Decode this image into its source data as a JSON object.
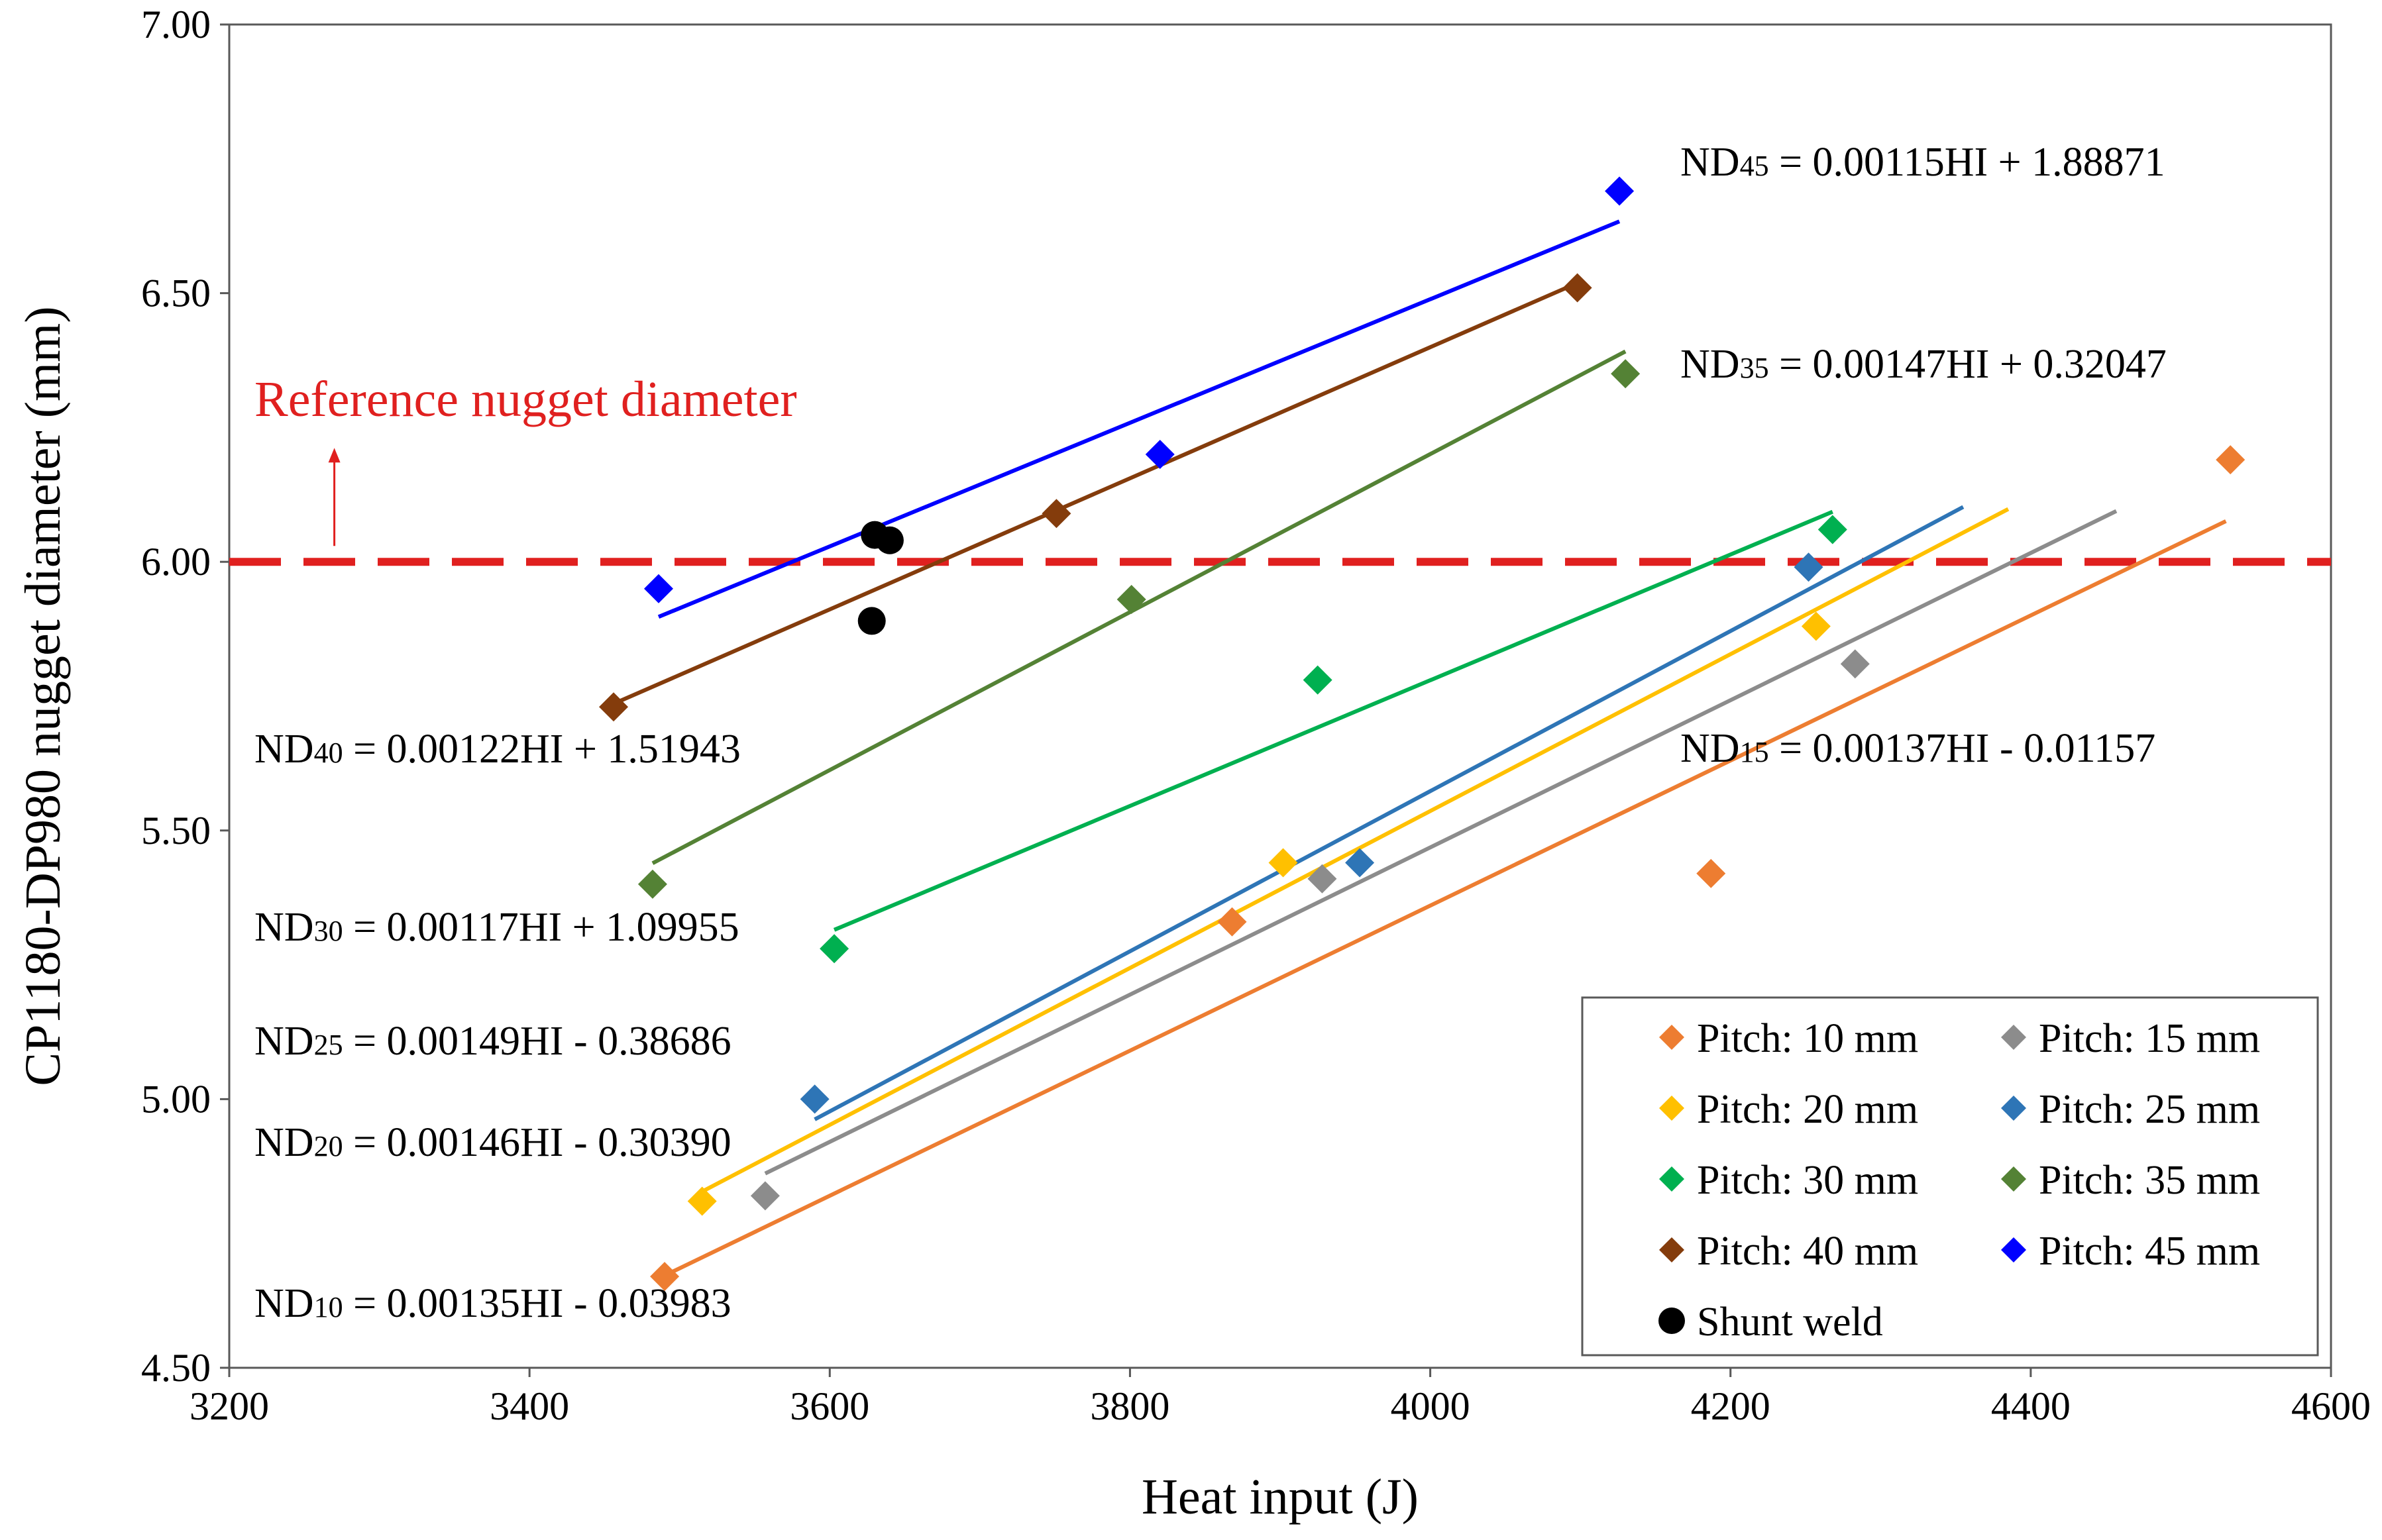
{
  "chart_data": {
    "type": "scatter",
    "title": "",
    "xlabel": "Heat input (J)",
    "ylabel": "CP1180-DP980 nugget diameter (mm)",
    "xlim": [
      3200,
      4600
    ],
    "ylim": [
      4.5,
      7.0
    ],
    "x_ticks": [
      "3200",
      "3400",
      "3600",
      "3800",
      "4000",
      "4200",
      "4400",
      "4600"
    ],
    "y_ticks": [
      "4.50",
      "5.00",
      "5.50",
      "6.00",
      "6.50",
      "7.00"
    ],
    "reference": {
      "label": "Reference nugget diameter",
      "value": 6.0,
      "color": "#e0201f",
      "arrow_x": 3270
    },
    "series": [
      {
        "name": "Pitch: 10 mm",
        "color": "#ed7d31",
        "points": [
          [
            3490,
            4.67
          ],
          [
            3868,
            5.33
          ],
          [
            4187,
            5.42
          ],
          [
            4533,
            6.19
          ]
        ],
        "fit_x": [
          3490,
          4530
        ],
        "eq_prefix": "ND",
        "eq_sub": "10",
        "equation": " = 0.00135HI - 0.03983"
      },
      {
        "name": "Pitch: 15 mm",
        "color": "#8c8c8c",
        "points": [
          [
            3557,
            4.82
          ],
          [
            3928,
            5.41
          ],
          [
            4283,
            5.81
          ]
        ],
        "fit_x": [
          3557,
          4457
        ],
        "eq_prefix": "ND",
        "eq_sub": "15",
        "equation": " = 0.00137HI - 0.01157"
      },
      {
        "name": "Pitch: 20 mm",
        "color": "#ffc000",
        "points": [
          [
            3515,
            4.81
          ],
          [
            3902,
            5.44
          ],
          [
            4257,
            5.88
          ]
        ],
        "fit_x": [
          3515,
          4385
        ],
        "eq_prefix": "ND",
        "eq_sub": "20",
        "equation": " = 0.00146HI - 0.30390"
      },
      {
        "name": "Pitch: 25 mm",
        "color": "#2e75b6",
        "points": [
          [
            3590,
            5.0
          ],
          [
            3953,
            5.44
          ],
          [
            4252,
            5.99
          ]
        ],
        "fit_x": [
          3590,
          4355
        ],
        "eq_prefix": "ND",
        "eq_sub": "25",
        "equation": " = 0.00149HI - 0.38686"
      },
      {
        "name": "Pitch: 30 mm",
        "color": "#00b050",
        "points": [
          [
            3603,
            5.28
          ],
          [
            3925,
            5.78
          ],
          [
            4268,
            6.06
          ]
        ],
        "fit_x": [
          3603,
          4268
        ],
        "eq_prefix": "ND",
        "eq_sub": "30",
        "equation": " = 0.00117HI + 1.09955"
      },
      {
        "name": "Pitch: 35 mm",
        "color": "#548235",
        "points": [
          [
            3482,
            5.4
          ],
          [
            3801,
            5.93
          ],
          [
            4130,
            6.35
          ]
        ],
        "fit_x": [
          3482,
          4130
        ],
        "eq_prefix": "ND",
        "eq_sub": "35",
        "equation": " = 0.00147HI + 0.32047"
      },
      {
        "name": "Pitch: 40 mm",
        "color": "#843c0c",
        "points": [
          [
            3456,
            5.73
          ],
          [
            3751,
            6.09
          ],
          [
            4098,
            6.51
          ]
        ],
        "fit_x": [
          3456,
          4098
        ],
        "eq_prefix": "ND",
        "eq_sub": "40",
        "equation": " = 0.00122HI + 1.51943"
      },
      {
        "name": "Pitch: 45 mm",
        "color": "#0000ff",
        "points": [
          [
            3486,
            5.95
          ],
          [
            3820,
            6.2
          ],
          [
            4126,
            6.69
          ]
        ],
        "fit_x": [
          3486,
          4126
        ],
        "eq_prefix": "ND",
        "eq_sub": "45",
        "equation": " = 0.00115HI + 1.88871"
      }
    ],
    "shunt_weld": {
      "name": "Shunt weld",
      "color": "#000000",
      "points": [
        [
          3630,
          6.05
        ],
        [
          3640,
          6.04
        ],
        [
          3628,
          5.89
        ]
      ]
    },
    "legend_position": "bottom-right"
  }
}
